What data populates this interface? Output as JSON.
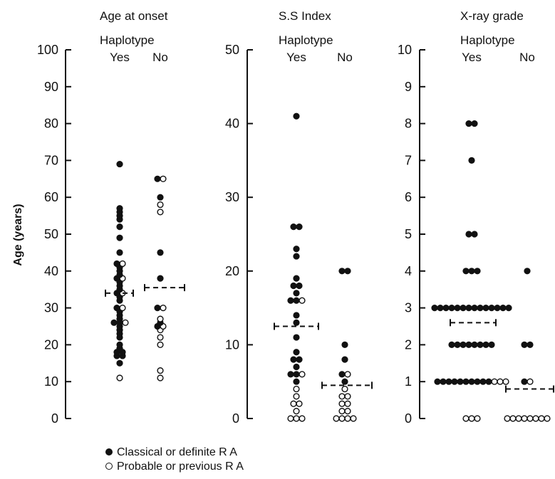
{
  "chart_data": [
    {
      "type": "scatter",
      "title": "Age at onset",
      "group_label": "Haplotype",
      "categories": [
        "Yes",
        "No"
      ],
      "ylabel": "Age (years)",
      "ylim": [
        0,
        100
      ],
      "yticks": [
        "0",
        "10",
        "20",
        "30",
        "40",
        "50",
        "60",
        "70",
        "80",
        "90",
        "100"
      ],
      "means": {
        "Yes": 34,
        "No": 35.5
      },
      "series": [
        {
          "name": "Classical or definite R A",
          "points": [
            {
              "x": "Yes",
              "y": 69
            },
            {
              "x": "Yes",
              "y": 57
            },
            {
              "x": "Yes",
              "y": 56
            },
            {
              "x": "Yes",
              "y": 55
            },
            {
              "x": "Yes",
              "y": 54
            },
            {
              "x": "Yes",
              "y": 52
            },
            {
              "x": "Yes",
              "y": 49
            },
            {
              "x": "Yes",
              "y": 45
            },
            {
              "x": "Yes",
              "y": 42
            },
            {
              "x": "Yes",
              "y": 41
            },
            {
              "x": "Yes",
              "y": 40
            },
            {
              "x": "Yes",
              "y": 39
            },
            {
              "x": "Yes",
              "y": 38
            },
            {
              "x": "Yes",
              "y": 37
            },
            {
              "x": "Yes",
              "y": 36
            },
            {
              "x": "Yes",
              "y": 35
            },
            {
              "x": "Yes",
              "y": 34
            },
            {
              "x": "Yes",
              "y": 33
            },
            {
              "x": "Yes",
              "y": 32
            },
            {
              "x": "Yes",
              "y": 30
            },
            {
              "x": "Yes",
              "y": 29
            },
            {
              "x": "Yes",
              "y": 28
            },
            {
              "x": "Yes",
              "y": 27
            },
            {
              "x": "Yes",
              "y": 26
            },
            {
              "x": "Yes",
              "y": 26
            },
            {
              "x": "Yes",
              "y": 25
            },
            {
              "x": "Yes",
              "y": 24
            },
            {
              "x": "Yes",
              "y": 23
            },
            {
              "x": "Yes",
              "y": 22
            },
            {
              "x": "Yes",
              "y": 20
            },
            {
              "x": "Yes",
              "y": 19
            },
            {
              "x": "Yes",
              "y": 18
            },
            {
              "x": "Yes",
              "y": 18
            },
            {
              "x": "Yes",
              "y": 17
            },
            {
              "x": "Yes",
              "y": 17
            },
            {
              "x": "Yes",
              "y": 15
            },
            {
              "x": "No",
              "y": 65
            },
            {
              "x": "No",
              "y": 60
            },
            {
              "x": "No",
              "y": 45
            },
            {
              "x": "No",
              "y": 38
            },
            {
              "x": "No",
              "y": 30
            },
            {
              "x": "No",
              "y": 26
            },
            {
              "x": "No",
              "y": 25
            }
          ]
        },
        {
          "name": "Probable or previous R A",
          "points": [
            {
              "x": "Yes",
              "y": 42
            },
            {
              "x": "Yes",
              "y": 38
            },
            {
              "x": "Yes",
              "y": 34
            },
            {
              "x": "Yes",
              "y": 30
            },
            {
              "x": "Yes",
              "y": 26
            },
            {
              "x": "Yes",
              "y": 11
            },
            {
              "x": "No",
              "y": 65
            },
            {
              "x": "No",
              "y": 58
            },
            {
              "x": "No",
              "y": 56
            },
            {
              "x": "No",
              "y": 30
            },
            {
              "x": "No",
              "y": 27
            },
            {
              "x": "No",
              "y": 25
            },
            {
              "x": "No",
              "y": 24
            },
            {
              "x": "No",
              "y": 22
            },
            {
              "x": "No",
              "y": 20
            },
            {
              "x": "No",
              "y": 13
            },
            {
              "x": "No",
              "y": 11
            }
          ]
        }
      ]
    },
    {
      "type": "scatter",
      "title": "S.S  Index",
      "group_label": "Haplotype",
      "categories": [
        "Yes",
        "No"
      ],
      "ylim": [
        0,
        50
      ],
      "yticks": [
        "0",
        "10",
        "20",
        "30",
        "40",
        "50"
      ],
      "means": {
        "Yes": 12.5,
        "No": 4.5
      },
      "series": [
        {
          "name": "Classical or definite R A",
          "points": [
            {
              "x": "Yes",
              "y": 41
            },
            {
              "x": "Yes",
              "y": 26
            },
            {
              "x": "Yes",
              "y": 26
            },
            {
              "x": "Yes",
              "y": 23
            },
            {
              "x": "Yes",
              "y": 22
            },
            {
              "x": "Yes",
              "y": 19
            },
            {
              "x": "Yes",
              "y": 18
            },
            {
              "x": "Yes",
              "y": 18
            },
            {
              "x": "Yes",
              "y": 17
            },
            {
              "x": "Yes",
              "y": 16
            },
            {
              "x": "Yes",
              "y": 16
            },
            {
              "x": "Yes",
              "y": 14
            },
            {
              "x": "Yes",
              "y": 13
            },
            {
              "x": "Yes",
              "y": 11
            },
            {
              "x": "Yes",
              "y": 9
            },
            {
              "x": "Yes",
              "y": 8
            },
            {
              "x": "Yes",
              "y": 8
            },
            {
              "x": "Yes",
              "y": 7
            },
            {
              "x": "Yes",
              "y": 6
            },
            {
              "x": "Yes",
              "y": 6
            },
            {
              "x": "Yes",
              "y": 5
            },
            {
              "x": "No",
              "y": 20
            },
            {
              "x": "No",
              "y": 20
            },
            {
              "x": "No",
              "y": 10
            },
            {
              "x": "No",
              "y": 8
            },
            {
              "x": "No",
              "y": 6
            },
            {
              "x": "No",
              "y": 5
            }
          ]
        },
        {
          "name": "Probable or previous R A",
          "points": [
            {
              "x": "Yes",
              "y": 16
            },
            {
              "x": "Yes",
              "y": 6
            },
            {
              "x": "Yes",
              "y": 4
            },
            {
              "x": "Yes",
              "y": 3
            },
            {
              "x": "Yes",
              "y": 2
            },
            {
              "x": "Yes",
              "y": 2
            },
            {
              "x": "Yes",
              "y": 1
            },
            {
              "x": "Yes",
              "y": 0
            },
            {
              "x": "Yes",
              "y": 0
            },
            {
              "x": "Yes",
              "y": 0
            },
            {
              "x": "No",
              "y": 6
            },
            {
              "x": "No",
              "y": 4
            },
            {
              "x": "No",
              "y": 3
            },
            {
              "x": "No",
              "y": 3
            },
            {
              "x": "No",
              "y": 2
            },
            {
              "x": "No",
              "y": 2
            },
            {
              "x": "No",
              "y": 1
            },
            {
              "x": "No",
              "y": 1
            },
            {
              "x": "No",
              "y": 0
            },
            {
              "x": "No",
              "y": 0
            },
            {
              "x": "No",
              "y": 0
            },
            {
              "x": "No",
              "y": 0
            }
          ]
        }
      ]
    },
    {
      "type": "scatter",
      "title": "X-ray grade",
      "group_label": "Haplotype",
      "categories": [
        "Yes",
        "No"
      ],
      "ylim": [
        0,
        10
      ],
      "yticks": [
        "0",
        "1",
        "2",
        "3",
        "4",
        "5",
        "6",
        "7",
        "8",
        "9",
        "10"
      ],
      "means": {
        "Yes": 2.6,
        "No": 0.8
      },
      "series": [
        {
          "name": "Classical or definite R A",
          "points": [
            {
              "x": "Yes",
              "y": 8
            },
            {
              "x": "Yes",
              "y": 8
            },
            {
              "x": "Yes",
              "y": 7
            },
            {
              "x": "Yes",
              "y": 5
            },
            {
              "x": "Yes",
              "y": 5
            },
            {
              "x": "Yes",
              "y": 4
            },
            {
              "x": "Yes",
              "y": 4
            },
            {
              "x": "Yes",
              "y": 4
            },
            {
              "x": "Yes",
              "y": 3
            },
            {
              "x": "Yes",
              "y": 3
            },
            {
              "x": "Yes",
              "y": 3
            },
            {
              "x": "Yes",
              "y": 3
            },
            {
              "x": "Yes",
              "y": 3
            },
            {
              "x": "Yes",
              "y": 3
            },
            {
              "x": "Yes",
              "y": 3
            },
            {
              "x": "Yes",
              "y": 3
            },
            {
              "x": "Yes",
              "y": 3
            },
            {
              "x": "Yes",
              "y": 3
            },
            {
              "x": "Yes",
              "y": 3
            },
            {
              "x": "Yes",
              "y": 3
            },
            {
              "x": "Yes",
              "y": 3
            },
            {
              "x": "Yes",
              "y": 3
            },
            {
              "x": "Yes",
              "y": 2
            },
            {
              "x": "Yes",
              "y": 2
            },
            {
              "x": "Yes",
              "y": 2
            },
            {
              "x": "Yes",
              "y": 2
            },
            {
              "x": "Yes",
              "y": 2
            },
            {
              "x": "Yes",
              "y": 2
            },
            {
              "x": "Yes",
              "y": 2
            },
            {
              "x": "Yes",
              "y": 2
            },
            {
              "x": "Yes",
              "y": 1
            },
            {
              "x": "Yes",
              "y": 1
            },
            {
              "x": "Yes",
              "y": 1
            },
            {
              "x": "Yes",
              "y": 1
            },
            {
              "x": "Yes",
              "y": 1
            },
            {
              "x": "Yes",
              "y": 1
            },
            {
              "x": "Yes",
              "y": 1
            },
            {
              "x": "Yes",
              "y": 1
            },
            {
              "x": "Yes",
              "y": 1
            },
            {
              "x": "Yes",
              "y": 1
            },
            {
              "x": "No",
              "y": 4
            },
            {
              "x": "No",
              "y": 2
            },
            {
              "x": "No",
              "y": 2
            },
            {
              "x": "No",
              "y": 1
            }
          ]
        },
        {
          "name": "Probable or previous R A",
          "points": [
            {
              "x": "Yes",
              "y": 1
            },
            {
              "x": "Yes",
              "y": 1
            },
            {
              "x": "Yes",
              "y": 1
            },
            {
              "x": "Yes",
              "y": 0
            },
            {
              "x": "Yes",
              "y": 0
            },
            {
              "x": "Yes",
              "y": 0
            },
            {
              "x": "No",
              "y": 1
            },
            {
              "x": "No",
              "y": 0
            },
            {
              "x": "No",
              "y": 0
            },
            {
              "x": "No",
              "y": 0
            },
            {
              "x": "No",
              "y": 0
            },
            {
              "x": "No",
              "y": 0
            },
            {
              "x": "No",
              "y": 0
            },
            {
              "x": "No",
              "y": 0
            },
            {
              "x": "No",
              "y": 0
            }
          ]
        }
      ]
    }
  ],
  "legend": [
    {
      "label": "Classical or definite R A"
    },
    {
      "label": "Probable or previous R A"
    }
  ]
}
